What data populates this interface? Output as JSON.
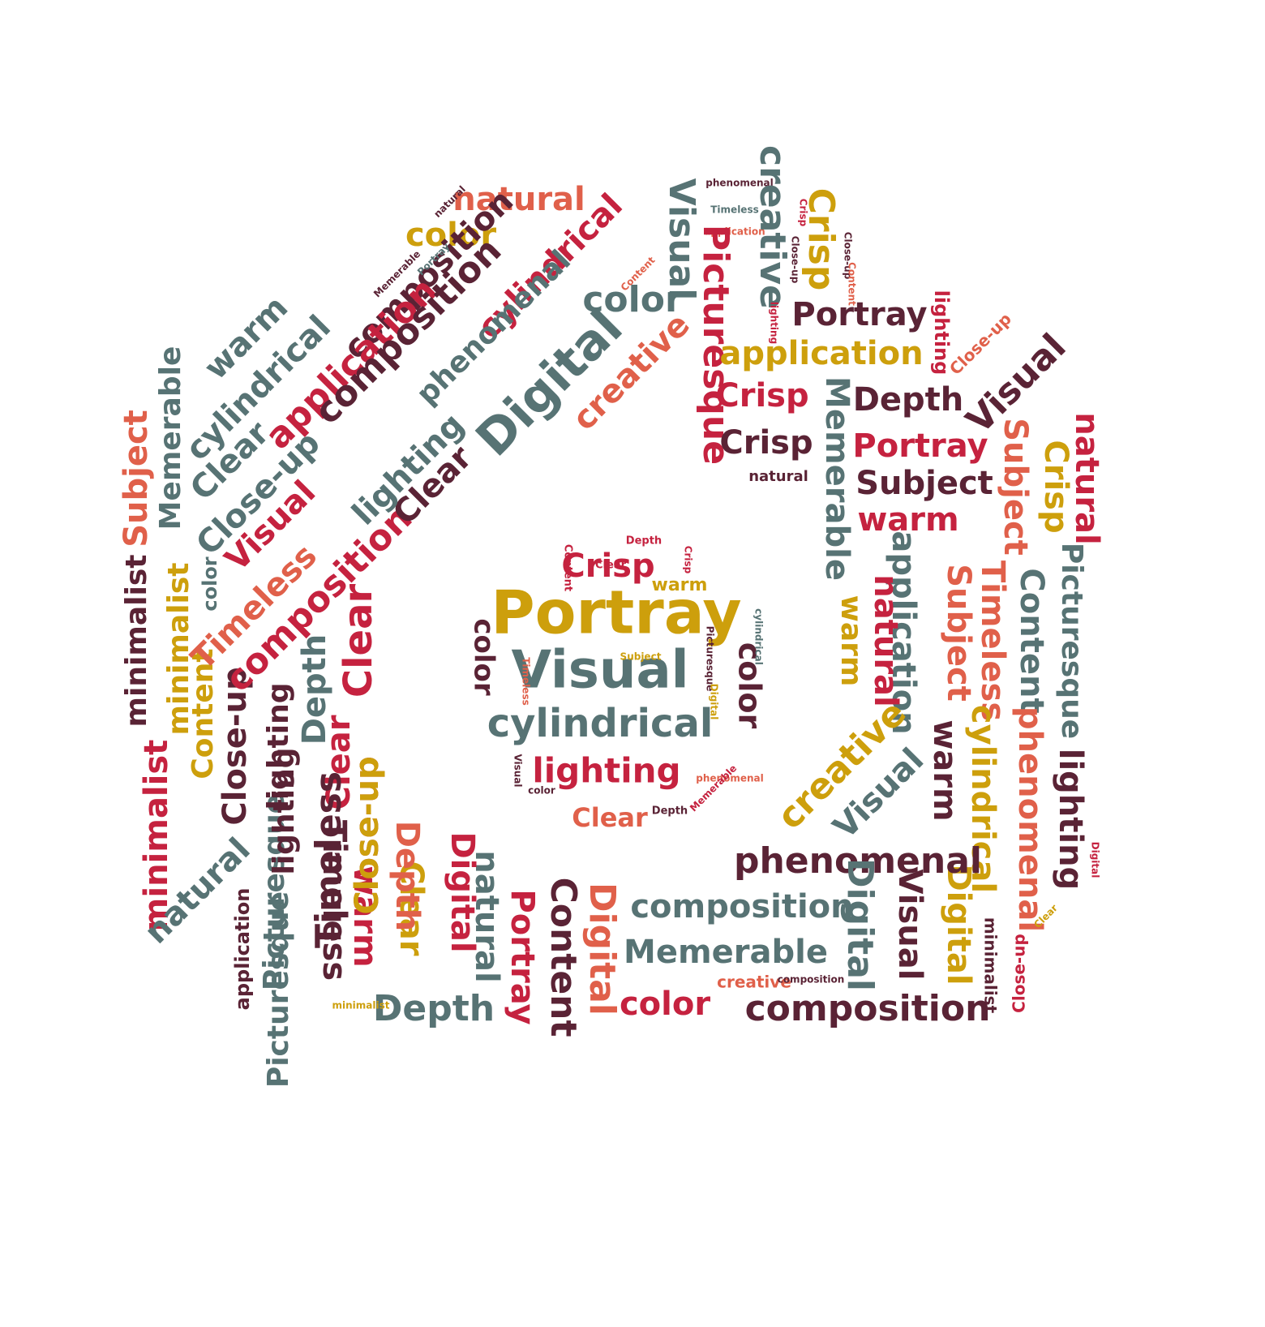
{
  "palette": {
    "teal": "#577374",
    "crimson": "#c5223f",
    "coral": "#e0604a",
    "gold": "#cd9f0c",
    "plum": "#5a2335"
  },
  "shape": "camera",
  "words": {
    "center": [
      "Portray",
      "Visual",
      "cylindrical",
      "lighting",
      "Clear",
      "Crisp",
      "warm",
      "color",
      "color",
      "Depth",
      "Depth",
      "Content",
      "Clear",
      "Subject",
      "Timeless",
      "Picturesque",
      "Visual",
      "color",
      "cylindrical",
      "Digital",
      "Crisp",
      "phenomenal",
      "Memerable"
    ],
    "top_hump": [
      "natural",
      "color",
      "phenomenal",
      "Visual",
      "Timeless",
      "application",
      "creative",
      "Crisp",
      "Picturesque",
      "color",
      "composition",
      "cylindrical",
      "Memerable",
      "natural",
      "Portray",
      "Content",
      "Close-up",
      "lighting",
      "Close-up",
      "Crisp",
      "Content"
    ],
    "left_side": [
      "warm",
      "cylindrical",
      "Clear",
      "Close-up",
      "Memerable",
      "Subject",
      "minimalist",
      "minimalist",
      "Content",
      "Picturesque",
      "application",
      "Visual",
      "Timeless",
      "Close-up",
      "color",
      "composition",
      "minimalist",
      "lighting",
      "Depth",
      "Clear",
      "composition",
      "Clear",
      "phenomenal",
      "Digital",
      "creative",
      "Clear",
      "Timeless",
      "lighting",
      "Close-up"
    ],
    "right_side": [
      "Portray",
      "application",
      "lighting",
      "Crisp",
      "Depth",
      "Visual",
      "Close-up",
      "Crisp",
      "Portray",
      "Subject",
      "natural",
      "Memerable",
      "warm",
      "Subject",
      "Crisp",
      "Picturesque",
      "Content",
      "Timeless",
      "application",
      "natural",
      "warm",
      "Subject",
      "creative",
      "Visual",
      "warm",
      "cylindrical",
      "phenomenal",
      "lighting",
      "Digital",
      "natural"
    ],
    "bottom": [
      "phenomenal",
      "composition",
      "Memerable",
      "Digital",
      "Visual",
      "Digital",
      "composition",
      "Content",
      "Depth",
      "Portray",
      "natural",
      "Digital",
      "color",
      "creative",
      "Clear",
      "Depth",
      "Timeless",
      "warm",
      "Close-up",
      "Picturesque",
      "lighting",
      "natural",
      "application",
      "minimalist",
      "Close-up",
      "Digital",
      "Clear",
      "minimalist",
      "composition"
    ]
  }
}
